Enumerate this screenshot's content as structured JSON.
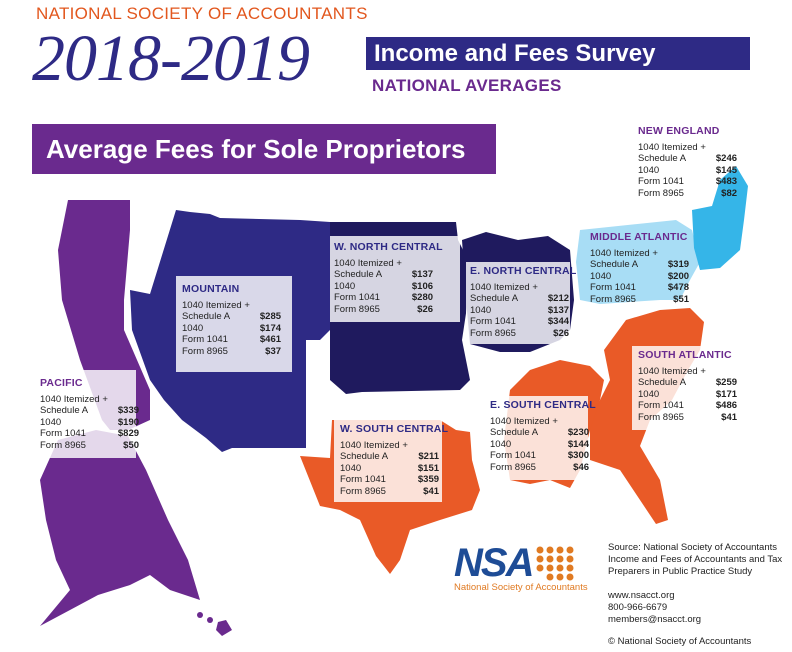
{
  "header": {
    "org_title": "NATIONAL SOCIETY OF ACCOUNTANTS",
    "year": "2018-2019",
    "survey_title": "Income and Fees Survey",
    "subtitle": "NATIONAL AVERAGES",
    "section_title": "Average Fees for Sole Proprietors"
  },
  "colors": {
    "pacific": "#6a2a8e",
    "mountain": "#2e2a85",
    "w_north_central": "#1f1a5e",
    "e_north_central": "#1f1a5e",
    "south": "#e95a27",
    "middle_atlantic": "#a8ddf5",
    "new_england": "#35b5e8",
    "title_orange": "#e2571e"
  },
  "regions": [
    {
      "id": "pacific",
      "name": "PACIFIC",
      "rows": [
        {
          "label": "1040 Itemized +",
          "value": ""
        },
        {
          "label": "Schedule A",
          "value": "$339"
        },
        {
          "label": "1040",
          "value": "$190"
        },
        {
          "label": "Form 1041",
          "value": "$829"
        },
        {
          "label": "Form 8965",
          "value": "$50"
        }
      ]
    },
    {
      "id": "mountain",
      "name": "MOUNTAIN",
      "rows": [
        {
          "label": "1040 Itemized +",
          "value": ""
        },
        {
          "label": "Schedule A",
          "value": "$285"
        },
        {
          "label": "1040",
          "value": "$174"
        },
        {
          "label": "Form 1041",
          "value": "$461"
        },
        {
          "label": "Form 8965",
          "value": "$37"
        }
      ]
    },
    {
      "id": "w_north_central",
      "name": "W. NORTH CENTRAL",
      "rows": [
        {
          "label": "1040 Itemized +",
          "value": ""
        },
        {
          "label": "Schedule A",
          "value": "$137"
        },
        {
          "label": "1040",
          "value": "$106"
        },
        {
          "label": "Form 1041",
          "value": "$280"
        },
        {
          "label": "Form 8965",
          "value": "$26"
        }
      ]
    },
    {
      "id": "e_north_central",
      "name": "E. NORTH CENTRAL",
      "rows": [
        {
          "label": "1040 Itemized +",
          "value": ""
        },
        {
          "label": "Schedule A",
          "value": "$212"
        },
        {
          "label": "1040",
          "value": "$137"
        },
        {
          "label": "Form 1041",
          "value": "$344"
        },
        {
          "label": "Form 8965",
          "value": "$26"
        }
      ]
    },
    {
      "id": "new_england",
      "name": "NEW ENGLAND",
      "rows": [
        {
          "label": "1040 Itemized +",
          "value": ""
        },
        {
          "label": "Schedule A",
          "value": "$246"
        },
        {
          "label": "1040",
          "value": "$145"
        },
        {
          "label": "Form 1041",
          "value": "$483"
        },
        {
          "label": "Form 8965",
          "value": "$82"
        }
      ]
    },
    {
      "id": "middle_atlantic",
      "name": "MIDDLE ATLANTIC",
      "rows": [
        {
          "label": "1040 Itemized +",
          "value": ""
        },
        {
          "label": "Schedule A",
          "value": "$319"
        },
        {
          "label": "1040",
          "value": "$200"
        },
        {
          "label": "Form 1041",
          "value": "$478"
        },
        {
          "label": "Form 8965",
          "value": "$51"
        }
      ]
    },
    {
      "id": "south_atlantic",
      "name": "SOUTH ATLANTIC",
      "rows": [
        {
          "label": "1040 Itemized +",
          "value": ""
        },
        {
          "label": "Schedule A",
          "value": "$259"
        },
        {
          "label": "1040",
          "value": "$171"
        },
        {
          "label": "Form 1041",
          "value": "$486"
        },
        {
          "label": "Form 8965",
          "value": "$41"
        }
      ]
    },
    {
      "id": "e_south_central",
      "name": "E. SOUTH CENTRAL",
      "rows": [
        {
          "label": "1040 Itemized +",
          "value": ""
        },
        {
          "label": "Schedule A",
          "value": "$230"
        },
        {
          "label": "1040",
          "value": "$144"
        },
        {
          "label": "Form 1041",
          "value": "$300"
        },
        {
          "label": "Form 8965",
          "value": "$46"
        }
      ]
    },
    {
      "id": "w_south_central",
      "name": "W. SOUTH CENTRAL",
      "rows": [
        {
          "label": "1040 Itemized +",
          "value": ""
        },
        {
          "label": "Schedule A",
          "value": "$211"
        },
        {
          "label": "1040",
          "value": "$151"
        },
        {
          "label": "Form 1041",
          "value": "$359"
        },
        {
          "label": "Form 8965",
          "value": "$41"
        }
      ]
    }
  ],
  "logo": {
    "letters": "NSA",
    "name": "National Society of Accountants",
    "brand_blue": "#1e4c96",
    "brand_orange": "#e07a22"
  },
  "source": {
    "lines": [
      "Source: National Society of Accountants",
      "Income and Fees of Accountants and Tax",
      "Preparers in Public Practice Study"
    ]
  },
  "contact": {
    "website": "www.nsacct.org",
    "phone": "800-966-6679",
    "email": "members@nsacct.org"
  },
  "copyright": "© National Society of Accountants"
}
